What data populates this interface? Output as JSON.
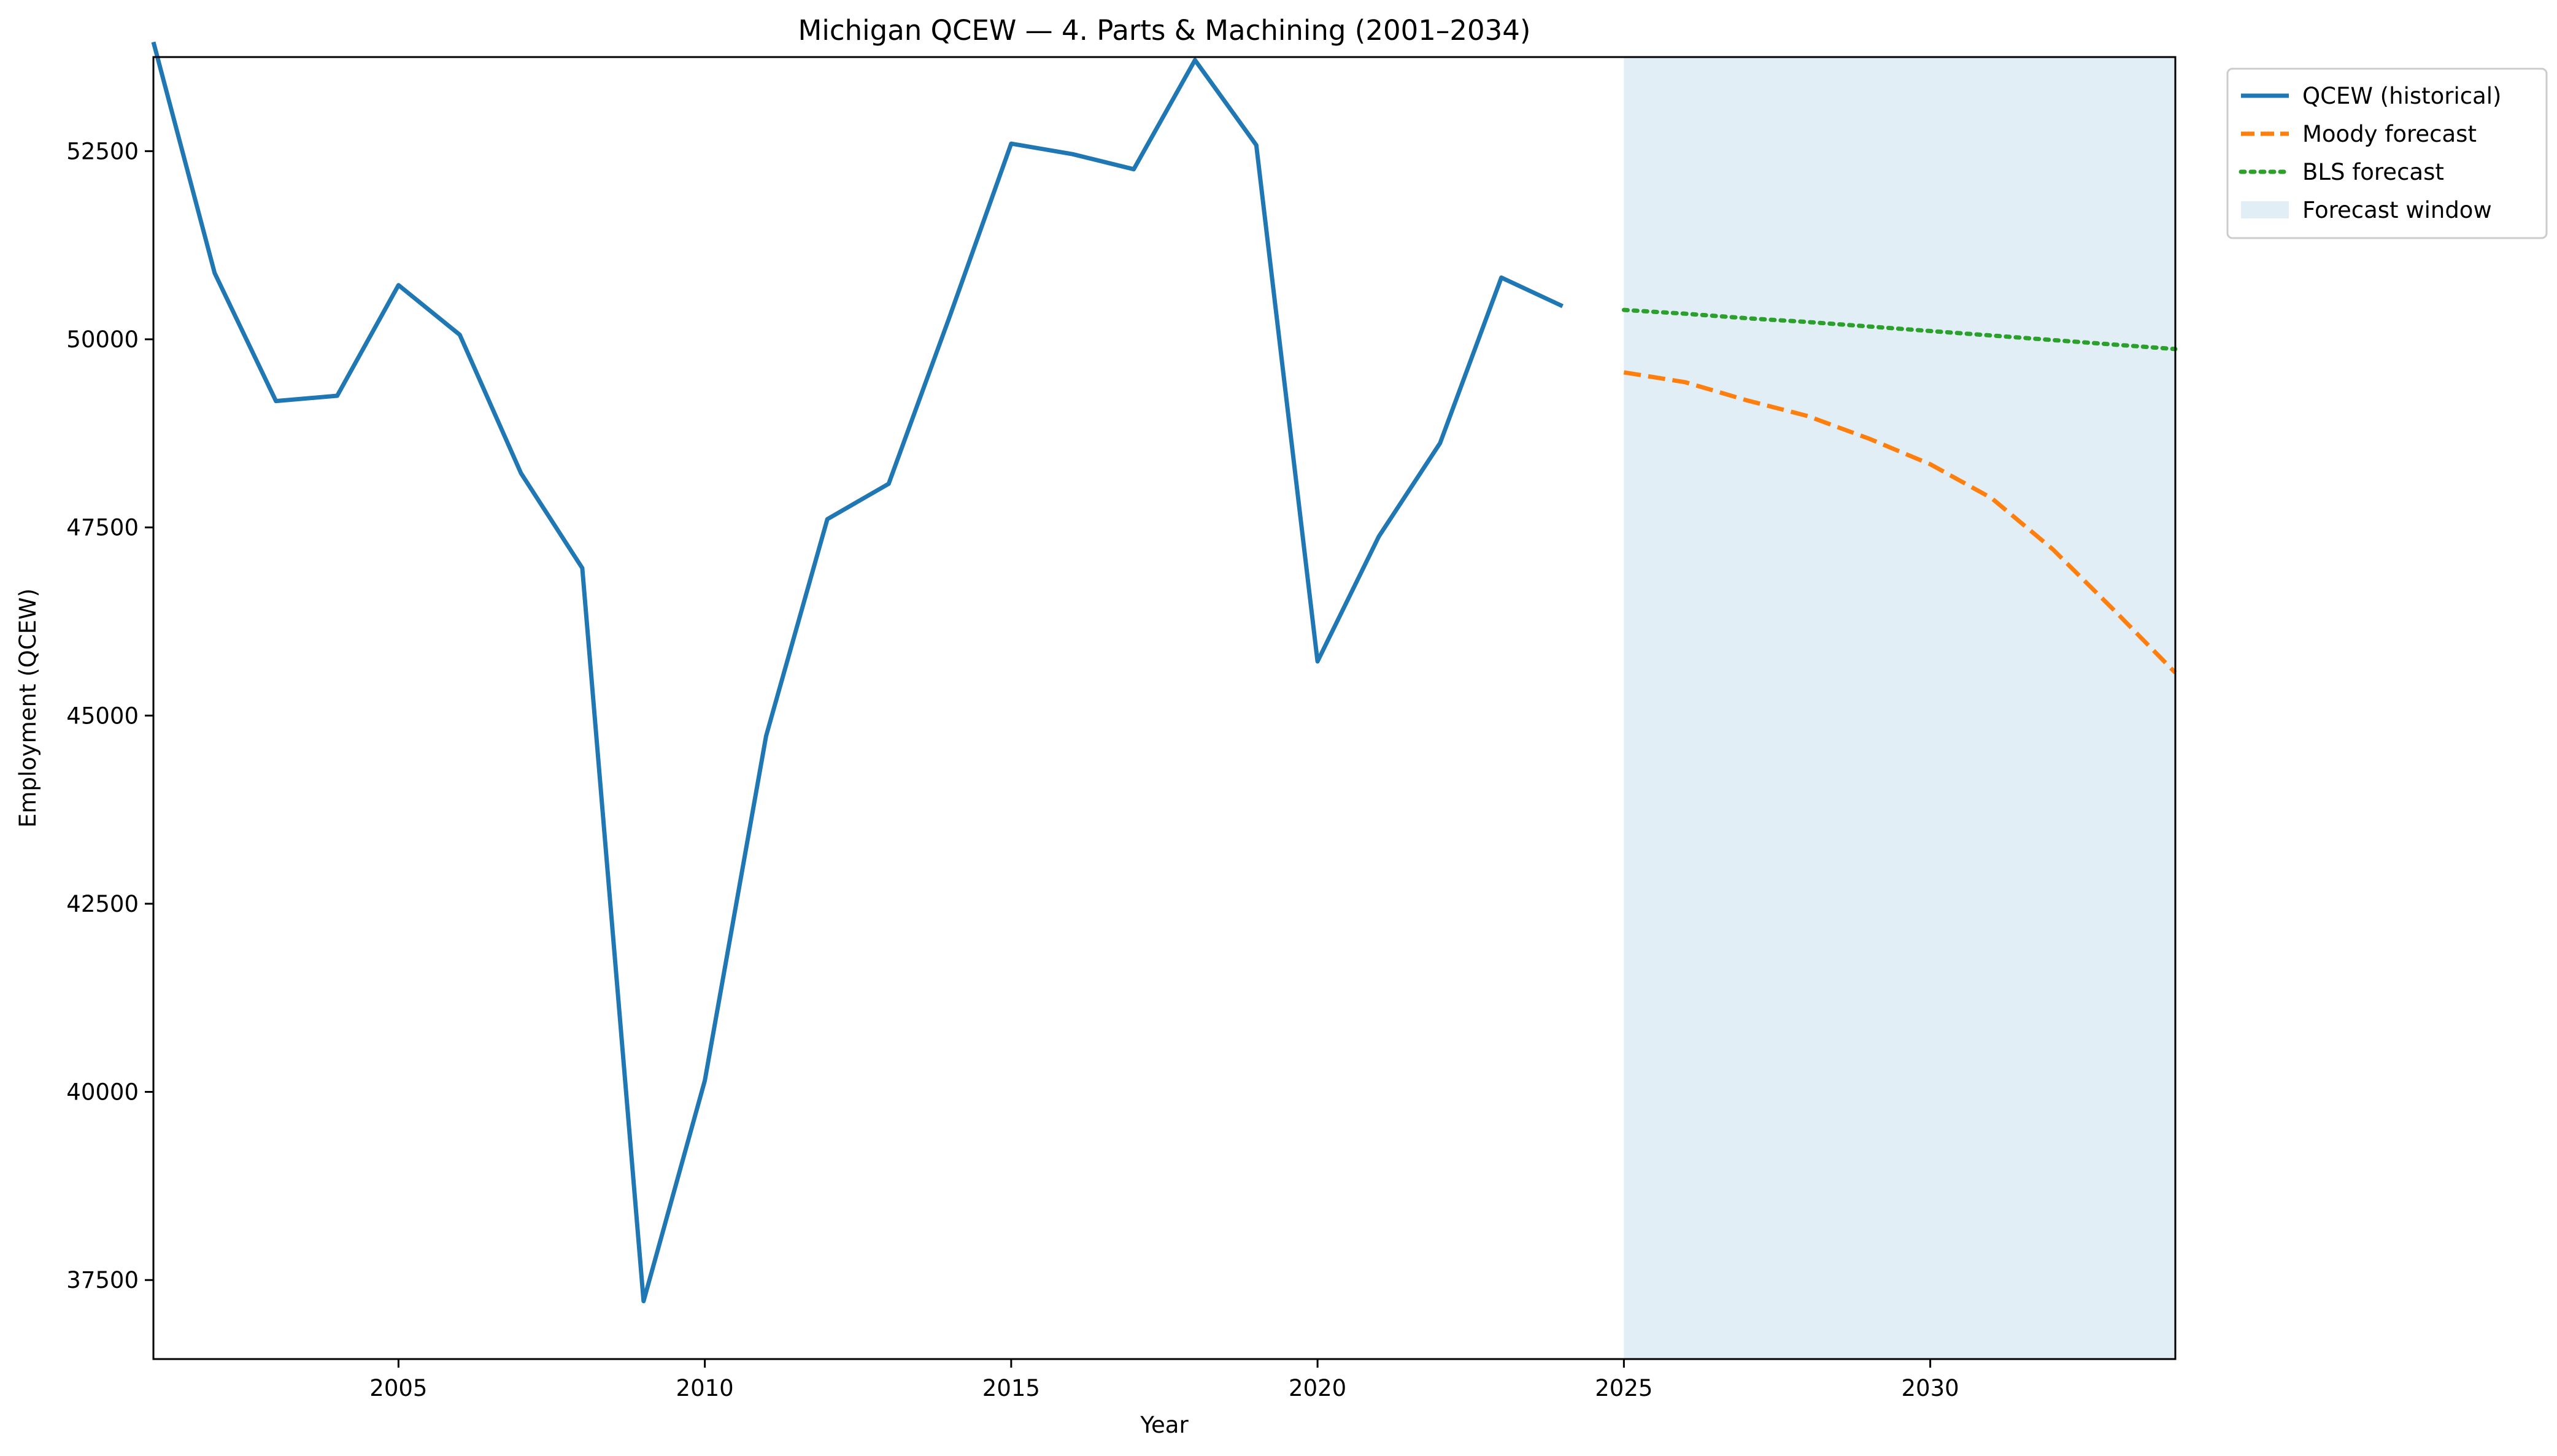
{
  "chart_data": {
    "type": "line",
    "title": "Michigan QCEW — 4. Parts & Machining (2001–2034)",
    "xlabel": "Year",
    "ylabel": "Employment (QCEW)",
    "xlim": [
      2001,
      2034
    ],
    "ylim": [
      36450,
      53750
    ],
    "xticks": [
      "2005",
      "2010",
      "2015",
      "2020",
      "2025",
      "2030"
    ],
    "yticks": [
      "37500",
      "40000",
      "42500",
      "45000",
      "47500",
      "50000",
      "52500"
    ],
    "grid": false,
    "legend_position": "outside-top-right",
    "forecast_window": {
      "name": "Forecast window",
      "start": 2025,
      "end": 2034,
      "color": "#e2eef5"
    },
    "series": [
      {
        "name": "QCEW (historical)",
        "style": "solid",
        "color": "#1f77b4",
        "x": [
          2001,
          2002,
          2003,
          2004,
          2005,
          2006,
          2007,
          2008,
          2009,
          2010,
          2011,
          2012,
          2013,
          2014,
          2015,
          2016,
          2017,
          2018,
          2019,
          2020,
          2021,
          2022,
          2023,
          2024
        ],
        "y": [
          53950,
          50880,
          49180,
          49250,
          50720,
          50060,
          48220,
          46960,
          37220,
          40150,
          44730,
          47610,
          48080,
          50310,
          52600,
          52460,
          52260,
          53710,
          52580,
          45720,
          47380,
          48620,
          50820,
          50440
        ]
      },
      {
        "name": "Moody forecast",
        "style": "dashed",
        "color": "#ff7f0e",
        "x": [
          2025,
          2026,
          2027,
          2028,
          2029,
          2030,
          2031,
          2032,
          2033,
          2034
        ],
        "y": [
          49560,
          49430,
          49190,
          48980,
          48680,
          48340,
          47890,
          47210,
          46400,
          45570
        ]
      },
      {
        "name": "BLS forecast",
        "style": "dotted",
        "color": "#2ca02c",
        "x": [
          2025,
          2026,
          2027,
          2028,
          2029,
          2030,
          2031,
          2032,
          2033,
          2034
        ],
        "y": [
          50390,
          50340,
          50280,
          50230,
          50170,
          50110,
          50050,
          49990,
          49930,
          49870
        ]
      }
    ]
  }
}
